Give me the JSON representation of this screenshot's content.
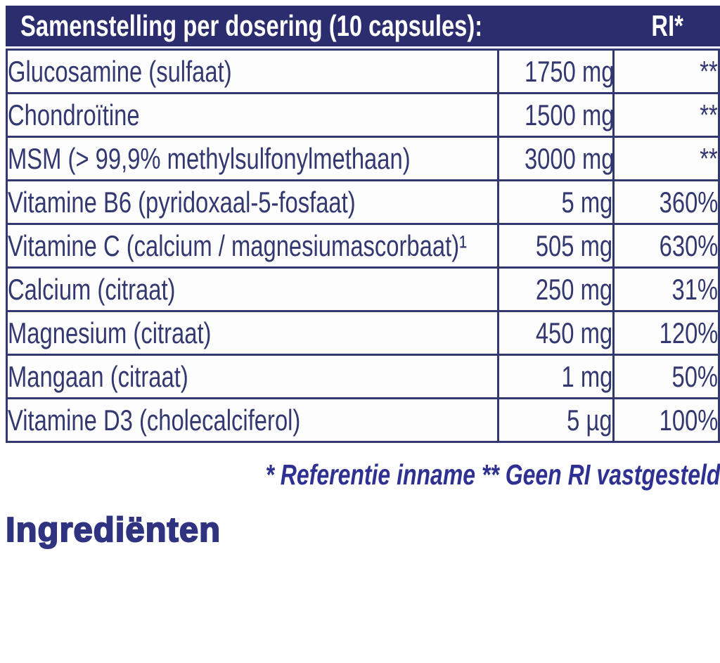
{
  "colors": {
    "header_bg": "#2b2d6e",
    "table_ink": "#333870",
    "footnote_ink": "#2e3192",
    "heading_ink": "#2f3380",
    "row_bg": "#fdfdfe"
  },
  "table": {
    "header": {
      "title": "Samenstelling per dosering (10 capsules):",
      "ri_label": "RI*"
    },
    "rows": [
      {
        "name": "Glucosamine (sulfaat)",
        "amount": "1750 mg",
        "ri": "**"
      },
      {
        "name": "Chondroïtine",
        "amount": "1500 mg",
        "ri": "**"
      },
      {
        "name": "MSM (> 99,9% methylsulfonylmethaan)",
        "amount": "3000 mg",
        "ri": "**"
      },
      {
        "name": "Vitamine B6 (pyridoxaal-5-fosfaat)",
        "amount": "5 mg",
        "ri": "360%"
      },
      {
        "name": "Vitamine C (calcium / magnesiumascorbaat)¹",
        "amount": "505 mg",
        "ri": "630%"
      },
      {
        "name": "Calcium (citraat)",
        "amount": "250 mg",
        "ri": "31%"
      },
      {
        "name": "Magnesium (citraat)",
        "amount": "450 mg",
        "ri": "120%"
      },
      {
        "name": "Mangaan (citraat)",
        "amount": "1 mg",
        "ri": "50%"
      },
      {
        "name": "Vitamine D3 (cholecalciferol)",
        "amount": "5 µg",
        "ri": "100%"
      }
    ]
  },
  "footnote": "* Referentie inname  ** Geen RI vastgesteld",
  "section_heading": "Ingrediënten"
}
